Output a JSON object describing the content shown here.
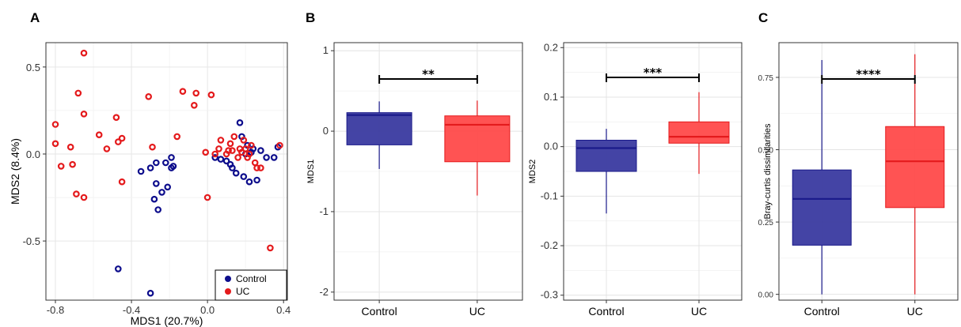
{
  "panels": {
    "a": "A",
    "b": "B",
    "c": "C"
  },
  "chart_data": [
    {
      "type": "scatter",
      "panel": "A",
      "xlabel": "MDS1 (20.7%)",
      "ylabel": "MDS2  (8.4%)",
      "xlim": [
        -0.85,
        0.42
      ],
      "ylim": [
        -0.84,
        0.64
      ],
      "xticks": [
        -0.8,
        -0.4,
        0.0,
        0.4
      ],
      "xtick_labels": [
        "-0.8",
        "-0.4",
        "0.0",
        "0.4"
      ],
      "yticks": [
        -0.5,
        0.0,
        0.5
      ],
      "ytick_labels": [
        "-0.5",
        "0.0",
        "0.5"
      ],
      "grid": true,
      "legend_position": "bottom-right",
      "legend": [
        "Control",
        "UC"
      ],
      "colors": {
        "Control": "#0d0d8c",
        "UC": "#e41a1c"
      },
      "series": [
        {
          "name": "Control",
          "points": [
            [
              -0.47,
              -0.66
            ],
            [
              -0.3,
              -0.8
            ],
            [
              -0.26,
              -0.32
            ],
            [
              -0.28,
              -0.26
            ],
            [
              -0.24,
              -0.22
            ],
            [
              -0.21,
              -0.19
            ],
            [
              -0.27,
              -0.17
            ],
            [
              -0.35,
              -0.1
            ],
            [
              -0.3,
              -0.08
            ],
            [
              -0.27,
              -0.05
            ],
            [
              -0.22,
              -0.05
            ],
            [
              -0.19,
              -0.02
            ],
            [
              -0.18,
              -0.07
            ],
            [
              -0.19,
              -0.08
            ],
            [
              0.04,
              -0.02
            ],
            [
              0.07,
              -0.03
            ],
            [
              0.1,
              -0.04
            ],
            [
              0.12,
              -0.06
            ],
            [
              0.13,
              -0.08
            ],
            [
              0.15,
              -0.11
            ],
            [
              0.19,
              -0.13
            ],
            [
              0.22,
              -0.16
            ],
            [
              0.26,
              -0.15
            ],
            [
              0.17,
              0.18
            ],
            [
              0.18,
              0.1
            ],
            [
              0.21,
              0.05
            ],
            [
              0.24,
              0.03
            ],
            [
              0.28,
              0.02
            ],
            [
              0.31,
              -0.02
            ],
            [
              0.35,
              -0.02
            ],
            [
              0.37,
              0.04
            ],
            [
              0.2,
              0.0
            ],
            [
              0.23,
              0.01
            ]
          ]
        },
        {
          "name": "UC",
          "points": [
            [
              -0.65,
              0.58
            ],
            [
              -0.68,
              0.35
            ],
            [
              -0.65,
              0.23
            ],
            [
              -0.8,
              0.17
            ],
            [
              -0.8,
              0.06
            ],
            [
              -0.77,
              -0.07
            ],
            [
              -0.72,
              0.04
            ],
            [
              -0.71,
              -0.06
            ],
            [
              -0.69,
              -0.23
            ],
            [
              -0.65,
              -0.25
            ],
            [
              -0.57,
              0.11
            ],
            [
              -0.53,
              0.03
            ],
            [
              -0.48,
              0.21
            ],
            [
              -0.47,
              0.07
            ],
            [
              -0.45,
              0.09
            ],
            [
              -0.45,
              -0.16
            ],
            [
              -0.31,
              0.33
            ],
            [
              -0.29,
              0.04
            ],
            [
              -0.13,
              0.36
            ],
            [
              -0.06,
              0.35
            ],
            [
              0.02,
              0.34
            ],
            [
              -0.07,
              0.28
            ],
            [
              -0.16,
              0.1
            ],
            [
              -0.01,
              0.01
            ],
            [
              0.0,
              -0.25
            ],
            [
              0.04,
              0.0
            ],
            [
              0.06,
              0.03
            ],
            [
              0.07,
              0.08
            ],
            [
              0.1,
              0.0
            ],
            [
              0.11,
              0.02
            ],
            [
              0.12,
              0.06
            ],
            [
              0.13,
              0.02
            ],
            [
              0.14,
              0.1
            ],
            [
              0.16,
              -0.02
            ],
            [
              0.17,
              0.03
            ],
            [
              0.18,
              0.01
            ],
            [
              0.19,
              0.08
            ],
            [
              0.2,
              0.03
            ],
            [
              0.21,
              -0.02
            ],
            [
              0.22,
              0.0
            ],
            [
              0.23,
              0.05
            ],
            [
              0.25,
              -0.05
            ],
            [
              0.26,
              -0.08
            ],
            [
              0.28,
              -0.08
            ],
            [
              0.33,
              -0.54
            ],
            [
              0.38,
              0.05
            ]
          ]
        }
      ]
    },
    {
      "type": "box",
      "panel": "B",
      "ylabel": "MDS1",
      "categories": [
        "Control",
        "UC"
      ],
      "ylim": [
        -2.1,
        1.1
      ],
      "yticks": [
        1,
        0,
        -1,
        -2
      ],
      "ytick_labels": [
        "1",
        "0",
        "-1",
        "-2"
      ],
      "grid": true,
      "significance": "**",
      "colors": {
        "Control": "#3a3aa0",
        "UC": "#ff4a4a"
      },
      "boxes": [
        {
          "name": "Control",
          "whisker_low": -0.47,
          "q1": -0.17,
          "median": 0.2,
          "q3": 0.23,
          "whisker_high": 0.37
        },
        {
          "name": "UC",
          "whisker_low": -0.8,
          "q1": -0.38,
          "median": 0.08,
          "q3": 0.19,
          "whisker_high": 0.38
        }
      ]
    },
    {
      "type": "box",
      "panel": "B",
      "ylabel": "MDS2",
      "categories": [
        "Control",
        "UC"
      ],
      "ylim": [
        -0.31,
        0.21
      ],
      "yticks": [
        0.2,
        0.1,
        0.0,
        -0.1,
        -0.2,
        -0.3
      ],
      "ytick_labels": [
        "0.2",
        "0.1",
        "0.0",
        "-0.1",
        "-0.2",
        "-0.3"
      ],
      "grid": true,
      "significance": "***",
      "colors": {
        "Control": "#3a3aa0",
        "UC": "#ff4a4a"
      },
      "boxes": [
        {
          "name": "Control",
          "whisker_low": -0.135,
          "q1": -0.05,
          "median": -0.003,
          "q3": 0.013,
          "whisker_high": 0.036
        },
        {
          "name": "UC",
          "whisker_low": -0.055,
          "q1": 0.007,
          "median": 0.02,
          "q3": 0.05,
          "whisker_high": 0.11
        }
      ]
    },
    {
      "type": "box",
      "panel": "C",
      "ylabel": "Bray-curtis dissimilarities",
      "categories": [
        "Control",
        "UC"
      ],
      "ylim": [
        -0.02,
        0.87
      ],
      "yticks": [
        0.75,
        0.5,
        0.25,
        0.0
      ],
      "ytick_labels": [
        "0.75",
        "0.50",
        "0.25",
        "0.00"
      ],
      "grid": true,
      "significance": "****",
      "colors": {
        "Control": "#3a3aa0",
        "UC": "#ff4a4a"
      },
      "boxes": [
        {
          "name": "Control",
          "whisker_low": 0.0,
          "q1": 0.17,
          "median": 0.33,
          "q3": 0.43,
          "whisker_high": 0.81
        },
        {
          "name": "UC",
          "whisker_low": 0.0,
          "q1": 0.3,
          "median": 0.46,
          "q3": 0.58,
          "whisker_high": 0.83
        }
      ]
    }
  ]
}
